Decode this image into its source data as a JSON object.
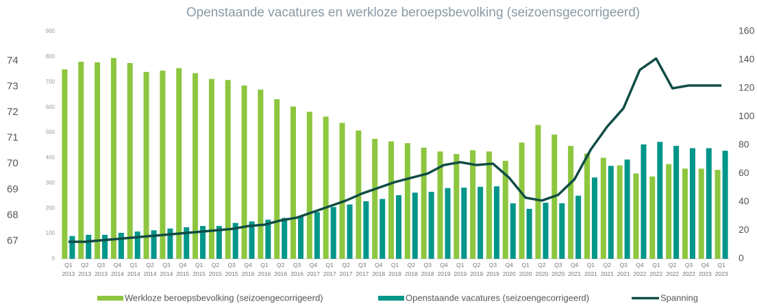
{
  "chart_data": {
    "type": "bar-line",
    "title": "Openstaande vacatures en werkloze beroepsbevolking (seizoensgecorrigeerd)",
    "categories": [
      "Q1 2013",
      "Q2 2013",
      "Q3 2013",
      "Q4 2014",
      "Q1 2014",
      "Q2 2014",
      "Q3 2014",
      "Q4 2015",
      "Q1 2015",
      "Q2 2015",
      "Q3 2015",
      "Q4 2016",
      "Q1 2016",
      "Q2 2016",
      "Q3 2016",
      "Q4 2017",
      "Q1 2017",
      "Q2 2017",
      "Q3 2017",
      "Q4 2018",
      "Q1 2018",
      "Q2 2018",
      "Q3 2018",
      "Q4 2019",
      "Q1 2019",
      "Q2 2019",
      "Q3 2019",
      "Q4 2020",
      "Q1 2020",
      "Q2 2020",
      "Q3 2020",
      "Q4 2021",
      "Q1 2021",
      "Q2 2021",
      "Q3 2021",
      "Q4 2022",
      "Q1 2022",
      "Q2 2022",
      "Q3 2022",
      "Q4 2023",
      "Q1 2023"
    ],
    "series": [
      {
        "name": "Werkloze beroepsbevolking (seizoengecorrigeerd)",
        "color": "#8dc63f",
        "type": "bar",
        "values": [
          750,
          780,
          778,
          795,
          775,
          740,
          745,
          755,
          735,
          712,
          708,
          686,
          670,
          632,
          603,
          582,
          563,
          538,
          508,
          475,
          465,
          458,
          440,
          425,
          415,
          430,
          425,
          388,
          460,
          530,
          492,
          447,
          417,
          400,
          370,
          338,
          326,
          375,
          357,
          357,
          352
        ]
      },
      {
        "name": "Openstaande vacatures (seizoengecorrigeerd)",
        "color": "#00968a",
        "type": "bar",
        "values": [
          90,
          95,
          95,
          103,
          108,
          113,
          120,
          125,
          130,
          130,
          142,
          148,
          155,
          162,
          170,
          185,
          205,
          215,
          228,
          237,
          252,
          262,
          265,
          280,
          282,
          285,
          287,
          220,
          198,
          222,
          220,
          250,
          322,
          368,
          393,
          453,
          463,
          447,
          438,
          438,
          428
        ]
      },
      {
        "name": "Spanning",
        "color": "#0f4c45",
        "type": "line",
        "axis": "y2",
        "values": [
          12,
          12,
          13,
          14,
          15,
          16,
          17,
          18,
          19,
          20,
          21,
          23,
          24,
          27,
          29,
          33,
          37,
          41,
          46,
          50,
          54,
          57,
          60,
          66,
          68,
          66,
          67,
          57,
          43,
          41,
          45,
          56,
          77,
          93,
          106,
          133,
          141,
          120,
          122,
          122,
          122
        ]
      }
    ],
    "ylim": [
      0,
      900
    ],
    "yticks": [
      0,
      100,
      200,
      300,
      400,
      500,
      600,
      700,
      800,
      900
    ],
    "y2lim": [
      0,
      160
    ],
    "y2ticks": [
      0,
      20,
      40,
      60,
      80,
      100,
      120,
      140,
      160
    ],
    "y3lim": [
      66.31,
      75.14
    ],
    "y3ticks": [
      67,
      68,
      69,
      70,
      71,
      72,
      73,
      74
    ],
    "legend": "bottom"
  }
}
